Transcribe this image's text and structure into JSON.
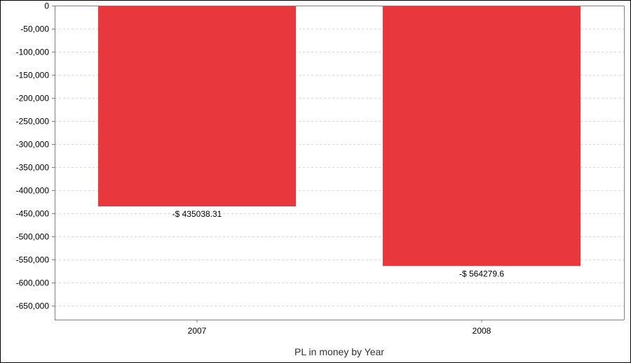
{
  "colors": {
    "bar": "#e8383d",
    "grid": "#d9d9d9",
    "axis": "#808080"
  },
  "chart_data": {
    "type": "bar",
    "categories": [
      "2007",
      "2008"
    ],
    "values": [
      -435038.31,
      -564279.6
    ],
    "data_labels": [
      "-$ 435038.31",
      "-$ 564279.6"
    ],
    "title": "",
    "xlabel": "PL in money by Year",
    "ylabel": "",
    "ylim": [
      -680000,
      0
    ],
    "yticks": [
      0,
      -50000,
      -100000,
      -150000,
      -200000,
      -250000,
      -300000,
      -350000,
      -400000,
      -450000,
      -500000,
      -550000,
      -600000,
      -650000
    ],
    "ytick_labels": [
      "0",
      "-50,000",
      "-100,000",
      "-150,000",
      "-200,000",
      "-250,000",
      "-300,000",
      "-350,000",
      "-400,000",
      "-450,000",
      "-500,000",
      "-550,000",
      "-600,000",
      "-650,000"
    ],
    "grid": true,
    "legend": "none"
  }
}
